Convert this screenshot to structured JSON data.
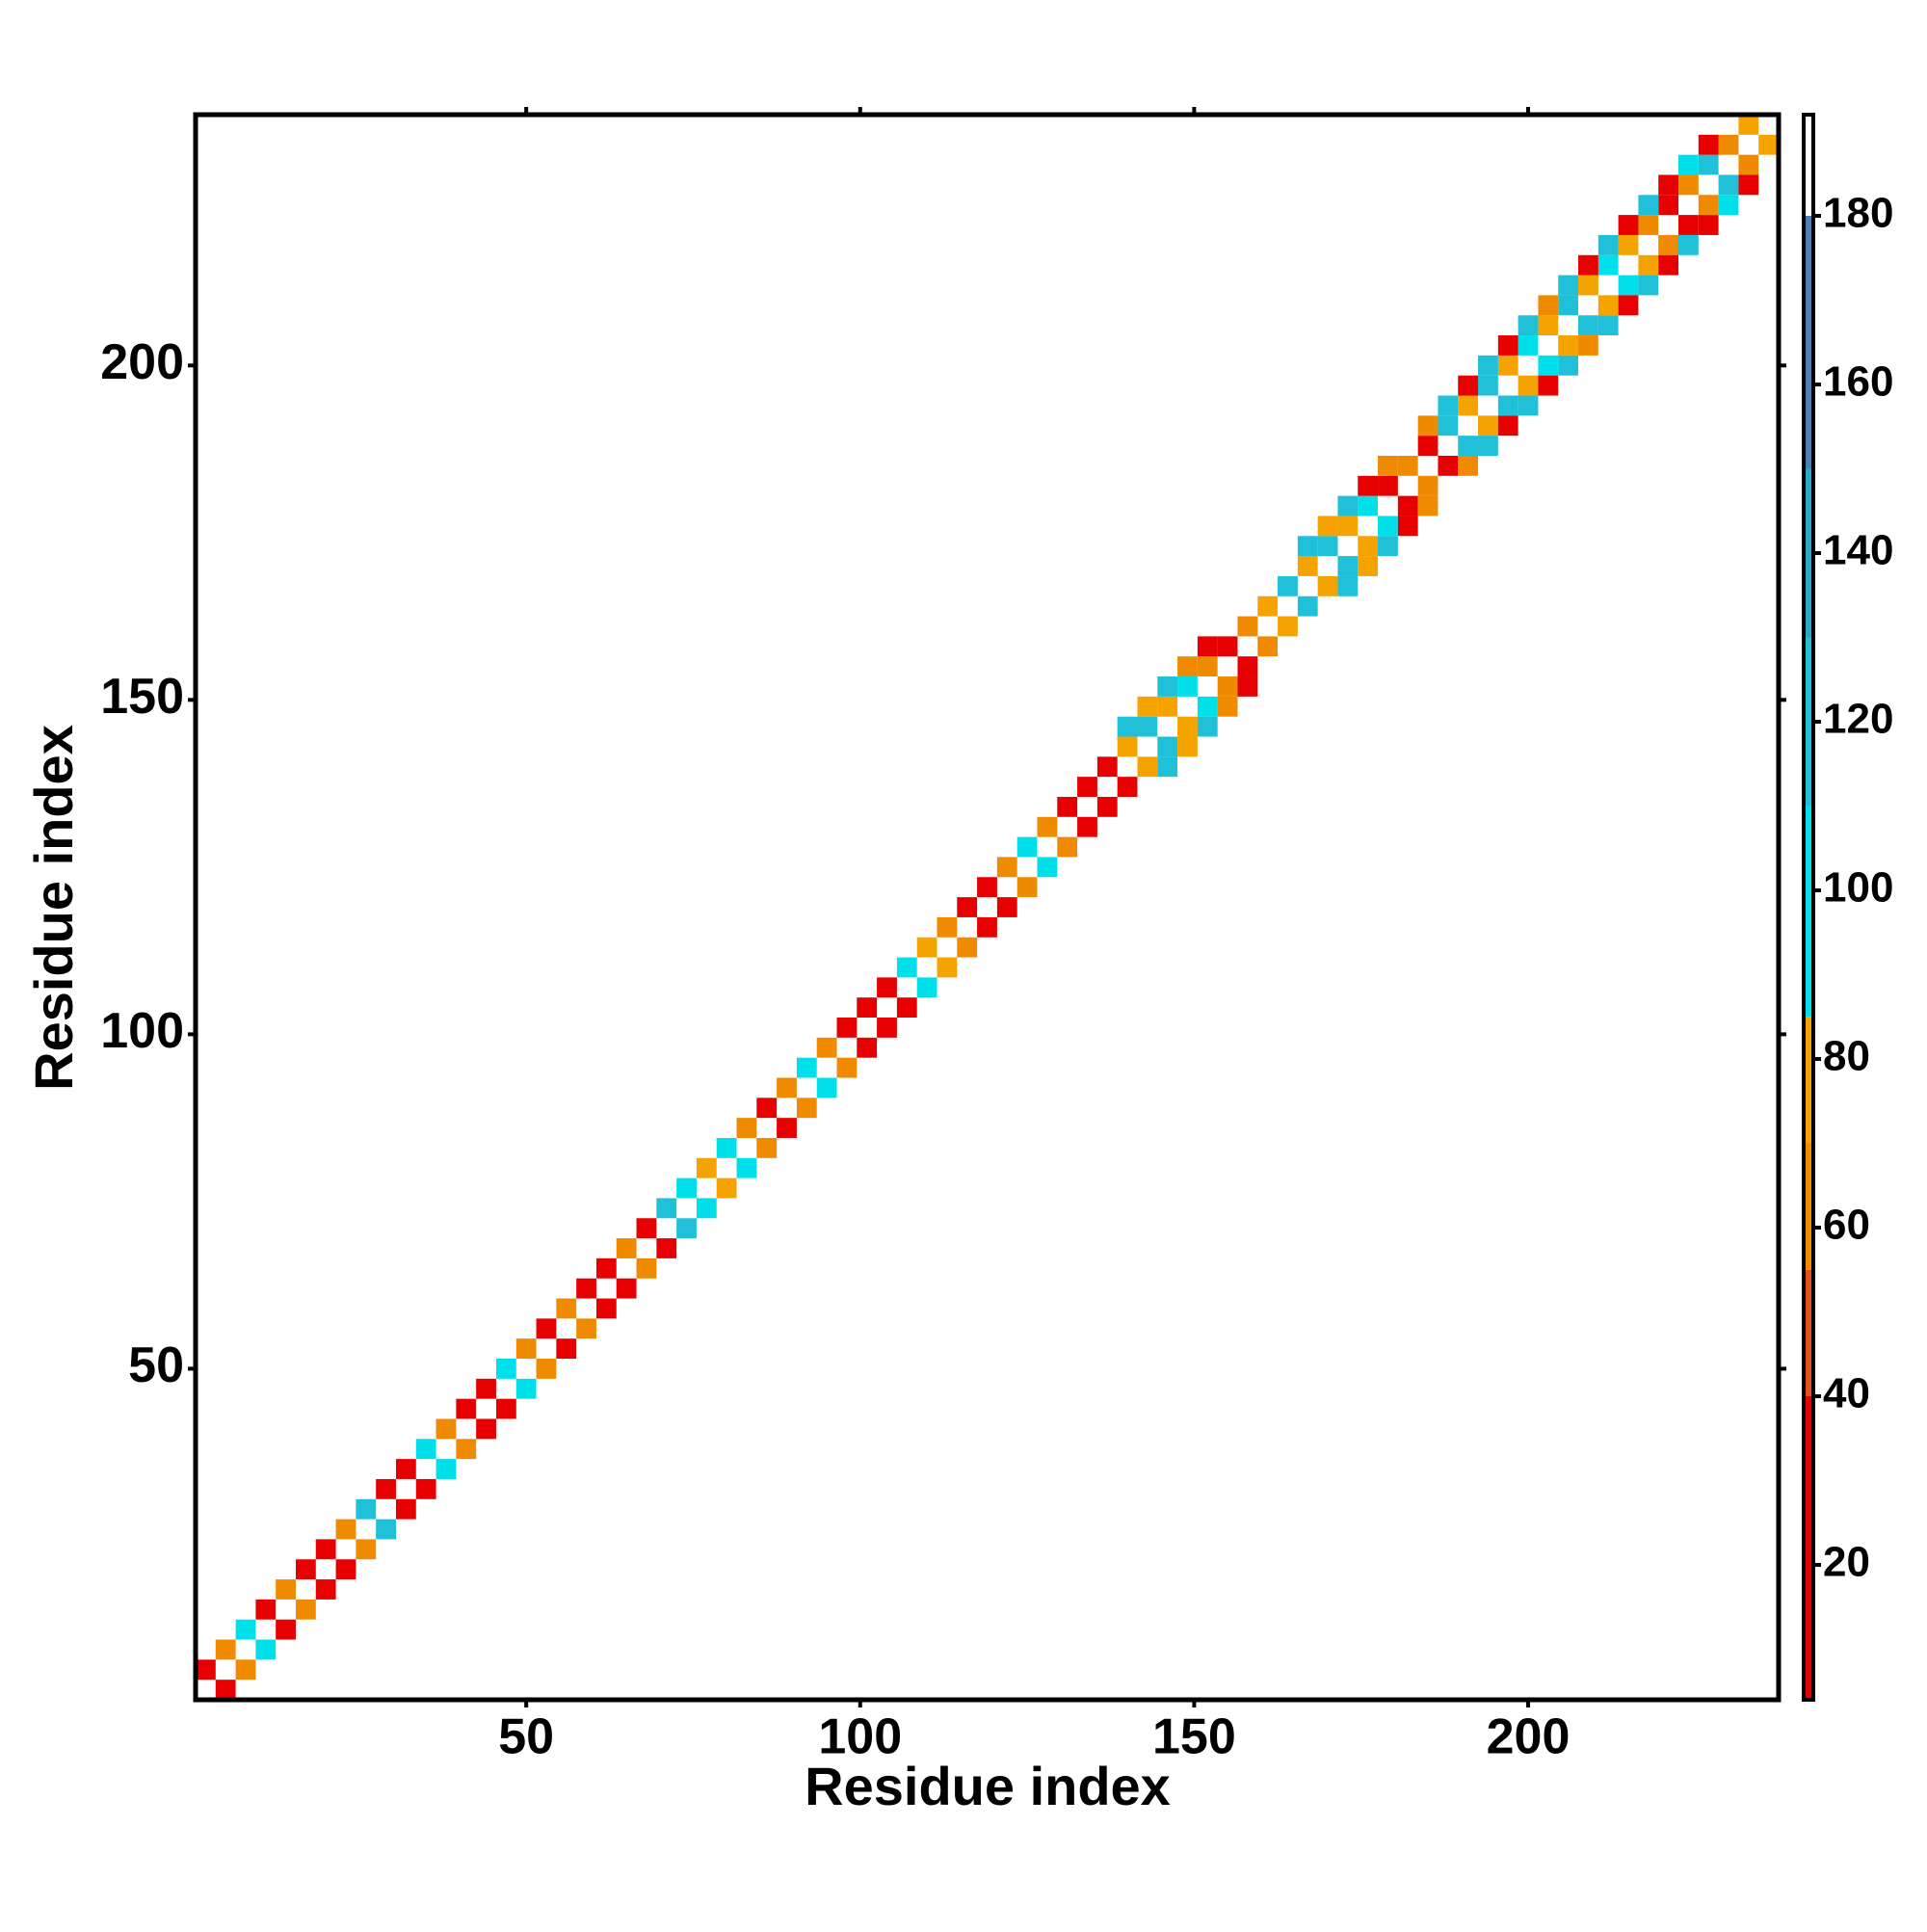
{
  "chart_data": {
    "type": "heatmap",
    "xlabel": "Residue index",
    "ylabel": "Residue index",
    "xlim": [
      0.5,
      237.5
    ],
    "ylim": [
      0.5,
      237.5
    ],
    "xticks": [
      50,
      100,
      150,
      200
    ],
    "yticks": [
      50,
      100,
      150,
      200
    ],
    "symmetric": true,
    "x": [
      2,
      5,
      8,
      11,
      14,
      17,
      20,
      23,
      26,
      29,
      32,
      35,
      38,
      41,
      44,
      47,
      50,
      53,
      56,
      59,
      62,
      65,
      68,
      71,
      74,
      77,
      80,
      83,
      86,
      89,
      92,
      95,
      98,
      101,
      104,
      107,
      110,
      113,
      116,
      119,
      122,
      125,
      128,
      131,
      134,
      137,
      140,
      143,
      146,
      149,
      152,
      155,
      158,
      161,
      164,
      167,
      170,
      173,
      176,
      179,
      182,
      185,
      188,
      191,
      194,
      197,
      200,
      203,
      206,
      209,
      212,
      215,
      218,
      221,
      224,
      227,
      230,
      233,
      140,
      143,
      146,
      149,
      152,
      167,
      170,
      173,
      176,
      179,
      185,
      188,
      191,
      194,
      197,
      200,
      203,
      206,
      209,
      212,
      215,
      218,
      221,
      224,
      227
    ],
    "y": [
      5,
      8,
      11,
      14,
      17,
      20,
      23,
      26,
      29,
      32,
      35,
      38,
      41,
      44,
      47,
      50,
      53,
      56,
      59,
      62,
      65,
      68,
      71,
      74,
      77,
      80,
      83,
      86,
      89,
      92,
      95,
      98,
      101,
      104,
      107,
      110,
      113,
      116,
      119,
      122,
      125,
      128,
      131,
      134,
      137,
      140,
      143,
      146,
      149,
      152,
      155,
      158,
      161,
      164,
      167,
      170,
      173,
      176,
      179,
      182,
      185,
      188,
      191,
      194,
      197,
      200,
      203,
      206,
      209,
      212,
      215,
      218,
      221,
      224,
      227,
      230,
      233,
      236,
      146,
      149,
      152,
      155,
      158,
      173,
      176,
      179,
      182,
      185,
      191,
      194,
      197,
      200,
      203,
      206,
      209,
      212,
      215,
      218,
      221,
      224,
      227,
      230,
      233
    ],
    "values": [
      20,
      60,
      100,
      15,
      55,
      25,
      20,
      65,
      110,
      20,
      25,
      100,
      60,
      20,
      30,
      105,
      55,
      25,
      65,
      20,
      25,
      60,
      20,
      110,
      100,
      70,
      95,
      60,
      25,
      65,
      95,
      60,
      20,
      25,
      15,
      100,
      70,
      55,
      20,
      25,
      60,
      105,
      65,
      20,
      25,
      30,
      70,
      110,
      75,
      105,
      60,
      30,
      65,
      70,
      115,
      75,
      110,
      70,
      100,
      35,
      65,
      25,
      120,
      70,
      110,
      75,
      105,
      70,
      115,
      75,
      100,
      70,
      60,
      30,
      65,
      110,
      60,
      70,
      120,
      70,
      115,
      65,
      30,
      125,
      70,
      110,
      30,
      60,
      65,
      125,
      35,
      120,
      30,
      115,
      60,
      125,
      35,
      120,
      30,
      110,
      25,
      105,
      30
    ],
    "colorbar": {
      "lim": [
        4,
        192
      ],
      "ticks": [
        20,
        40,
        60,
        80,
        100,
        120,
        140,
        160,
        180
      ],
      "bands": [
        {
          "value": 4,
          "color": "#e60000"
        },
        {
          "value": 40,
          "color": "#e4501c"
        },
        {
          "value": 55,
          "color": "#f08a00"
        },
        {
          "value": 70,
          "color": "#f5a300"
        },
        {
          "value": 85,
          "color": "#00e0ea"
        },
        {
          "value": 110,
          "color": "#1fc0d8"
        },
        {
          "value": 130,
          "color": "#2aa6c8"
        },
        {
          "value": 150,
          "color": "#4682b4"
        },
        {
          "value": 180,
          "color": "#ffffff"
        }
      ]
    }
  }
}
